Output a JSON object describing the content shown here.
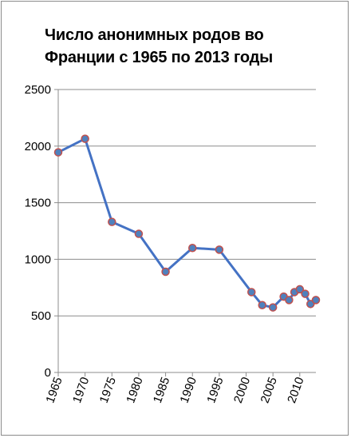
{
  "chart_data": {
    "type": "line",
    "title": "Число анонимных родов во Франции с 1965 по 2013 годы",
    "xlabel": "",
    "ylabel": "",
    "x": [
      1965,
      1970,
      1975,
      1980,
      1985,
      1990,
      1995,
      2001,
      2003,
      2005,
      2007,
      2008,
      2009,
      2010,
      2011,
      2012,
      2013
    ],
    "values": [
      1945,
      2065,
      1330,
      1225,
      890,
      1100,
      1085,
      710,
      595,
      575,
      670,
      640,
      710,
      735,
      695,
      605,
      640
    ],
    "xlim": [
      1965,
      2013
    ],
    "ylim": [
      0,
      2500
    ],
    "y_ticks": [
      0,
      500,
      1000,
      1500,
      2000,
      2500
    ],
    "x_ticks": [
      1965,
      1970,
      1975,
      1980,
      1985,
      1990,
      1995,
      2000,
      2005,
      2010
    ],
    "grid": true,
    "line_color": "#4472c4",
    "marker_fill": "#4f81bd",
    "marker_edge": "#c0504d"
  }
}
